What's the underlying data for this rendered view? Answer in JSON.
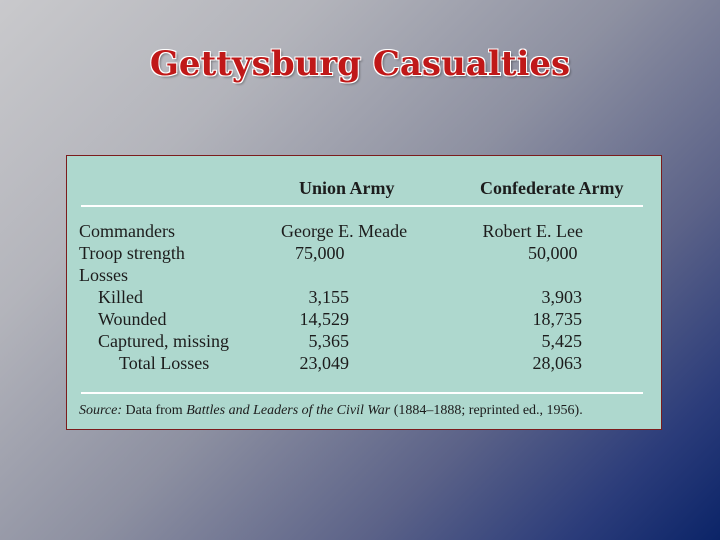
{
  "slide": {
    "title": "Gettysburg Casualties"
  },
  "table": {
    "columns": [
      "Union Army",
      "Confederate Army"
    ],
    "rows": [
      {
        "label": "Commanders",
        "union": "George E. Meade",
        "confederate": "Robert E. Lee"
      },
      {
        "label": "Troop strength",
        "union": "75,000",
        "confederate": "50,000"
      },
      {
        "label": "Losses",
        "union": "",
        "confederate": ""
      },
      {
        "label": "Killed",
        "union": "3,155",
        "confederate": "3,903"
      },
      {
        "label": "Wounded",
        "union": "14,529",
        "confederate": "18,735"
      },
      {
        "label": "Captured, missing",
        "union": "5,365",
        "confederate": "5,425"
      },
      {
        "label": "Total Losses",
        "union": "23,049",
        "confederate": "28,063"
      }
    ],
    "source": {
      "prefix": "Source:",
      "text1": " Data from ",
      "work": "Battles and Leaders of the Civil War",
      "text2": " (1884–1888; reprinted ed., 1956)."
    }
  }
}
